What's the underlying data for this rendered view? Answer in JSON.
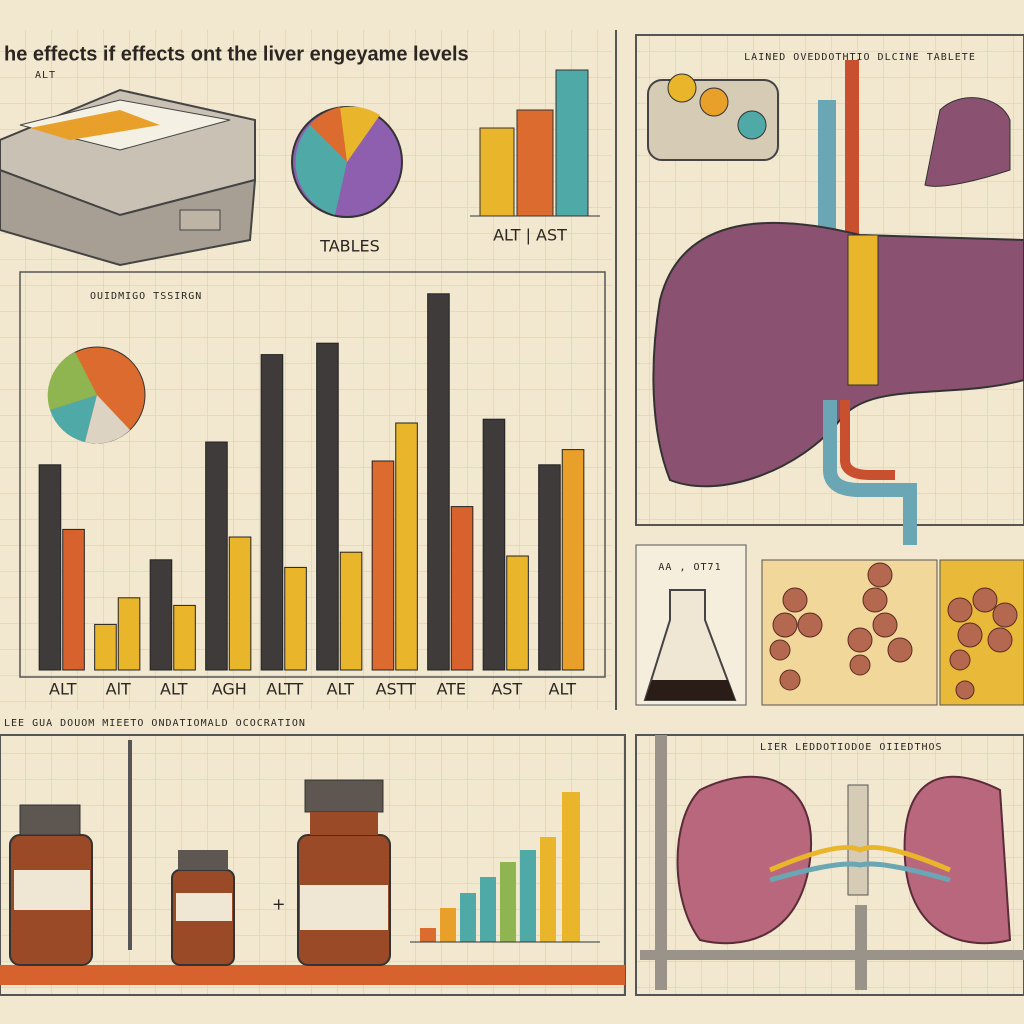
{
  "title": "he effects if effects ont the liver engeyame levels",
  "top_left": {
    "pie_label": "TABLES",
    "bars_label": "ALT | AST",
    "box_label": "ALT"
  },
  "right_top": {
    "caption": "LAINED OVEDDOTHTIO DLCINE TABLETE",
    "flask_label": "AA , OT71"
  },
  "bottom_left": {
    "caption": "LEE GUA DOUOM MIEETO ONDATIOMALD OCOCRATION"
  },
  "bottom_right": {
    "caption": "LIER   LEDDOTIODOE   OIIEDTHOS"
  },
  "chart_data": {
    "type": "bar",
    "subtitle": "OUIDMIGO TSSIRGN",
    "categories": [
      "ALT",
      "AlT",
      "ALT",
      "AGH",
      "ALTT",
      "ALT",
      "ASTT",
      "ATE",
      "AST",
      "ALT"
    ],
    "series": [
      {
        "values": [
          54,
          12,
          29,
          60,
          83,
          86,
          55,
          99,
          66,
          54
        ],
        "colors": [
          "#3f3b3a",
          "#e8b52b",
          "#3f3b3a",
          "#3f3b3a",
          "#3f3b3a",
          "#3f3b3a",
          "#dc6b2f",
          "#3f3b3a",
          "#3f3b3a",
          "#3f3b3a"
        ]
      },
      {
        "values": [
          37,
          19,
          17,
          35,
          27,
          31,
          65,
          43,
          30,
          58
        ],
        "colors": [
          "#d8622e",
          "#e8b52b",
          "#e8b52b",
          "#e8b52b",
          "#e8b52b",
          "#e8b52b",
          "#e8b52b",
          "#d8622e",
          "#e8b52b",
          "#e8a02b"
        ]
      }
    ],
    "ylim": [
      0,
      100
    ]
  }
}
